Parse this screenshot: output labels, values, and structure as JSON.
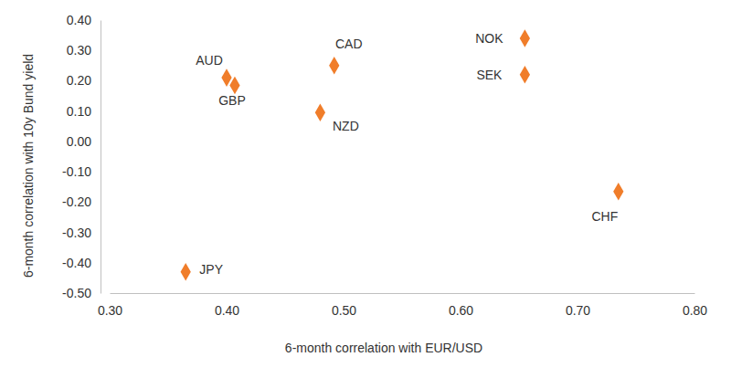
{
  "chart_data": {
    "type": "scatter",
    "x_label": "6-month correlation with EUR/USD",
    "y_label": "6-month correlation with 10y Bund yield",
    "labels": [
      "AUD",
      "GBP",
      "CAD",
      "NZD",
      "NOK",
      "SEK",
      "CHF",
      "JPY"
    ],
    "x": [
      0.4,
      0.407,
      0.492,
      0.48,
      0.655,
      0.655,
      0.735,
      0.365
    ],
    "values": [
      0.21,
      0.185,
      0.25,
      0.095,
      0.34,
      0.22,
      -0.165,
      -0.43
    ],
    "color": "#f07d2a",
    "marker": "diamond",
    "xlim": [
      0.3,
      0.8
    ],
    "xticks": [
      {
        "value": 0.3,
        "label": "0.30"
      },
      {
        "value": 0.4,
        "label": "0.40"
      },
      {
        "value": 0.5,
        "label": "0.50"
      },
      {
        "value": 0.6,
        "label": "0.60"
      },
      {
        "value": 0.7,
        "label": "0.70"
      },
      {
        "value": 0.8,
        "label": "0.80"
      }
    ],
    "ylim": [
      -0.5,
      0.4
    ],
    "yticks": [
      {
        "value": -0.5,
        "label": "-0.50"
      },
      {
        "value": -0.4,
        "label": "-0.40"
      },
      {
        "value": -0.3,
        "label": "-0.30"
      },
      {
        "value": -0.2,
        "label": "-0.20"
      },
      {
        "value": -0.1,
        "label": "-0.10"
      },
      {
        "value": 0,
        "label": "0.00"
      },
      {
        "value": 0.1,
        "label": "0.10"
      },
      {
        "value": 0.2,
        "label": "0.20"
      },
      {
        "value": 0.3,
        "label": "0.30"
      },
      {
        "value": 0.4,
        "label": "0.40"
      }
    ],
    "grid": false
  }
}
